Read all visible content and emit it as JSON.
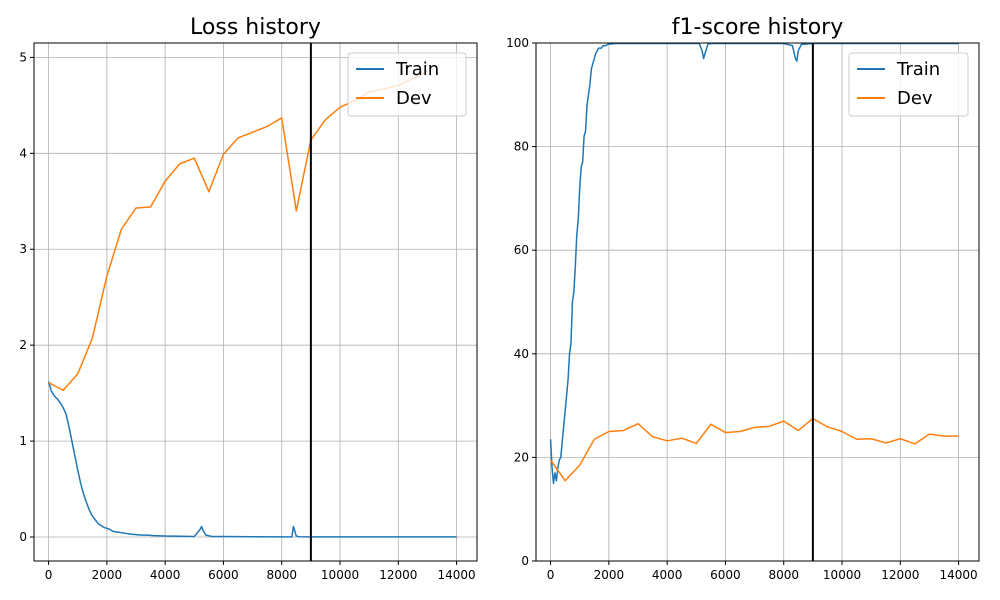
{
  "colors": {
    "train": "#1f77b4",
    "dev": "#ff7f0e",
    "vline": "#000000",
    "grid": "#b0b0b0"
  },
  "chart_data": [
    {
      "type": "line",
      "title": "Loss history",
      "xlabel": "",
      "ylabel": "",
      "xlim": [
        -500,
        14700
      ],
      "ylim": [
        -0.25,
        5.15
      ],
      "xticks": [
        "0",
        "2000",
        "4000",
        "6000",
        "8000",
        "10000",
        "12000",
        "14000"
      ],
      "yticks": [
        "0",
        "1",
        "2",
        "3",
        "4",
        "5"
      ],
      "grid": true,
      "legend_position": "top-right",
      "vline_x": 9000,
      "series": [
        {
          "name": "Train",
          "x": [
            0,
            100,
            200,
            300,
            400,
            500,
            600,
            700,
            800,
            900,
            1000,
            1100,
            1200,
            1300,
            1400,
            1500,
            1600,
            1700,
            1800,
            1900,
            2000,
            2100,
            2200,
            2400,
            2600,
            2800,
            3000,
            3200,
            3400,
            3600,
            4000,
            4500,
            5000,
            5200,
            5250,
            5300,
            5400,
            5600,
            6000,
            7000,
            8000,
            8350,
            8400,
            8450,
            8500,
            8600,
            9000,
            10000,
            11000,
            12000,
            13000,
            14000
          ],
          "y": [
            1.62,
            1.52,
            1.47,
            1.44,
            1.4,
            1.35,
            1.28,
            1.15,
            1.0,
            0.85,
            0.7,
            0.56,
            0.45,
            0.36,
            0.28,
            0.22,
            0.18,
            0.14,
            0.12,
            0.1,
            0.09,
            0.08,
            0.06,
            0.05,
            0.04,
            0.03,
            0.025,
            0.02,
            0.02,
            0.015,
            0.01,
            0.008,
            0.006,
            0.08,
            0.11,
            0.07,
            0.02,
            0.006,
            0.005,
            0.003,
            0.002,
            0.002,
            0.11,
            0.06,
            0.01,
            0.003,
            0.002,
            0.001,
            0.001,
            0.001,
            0.001,
            0.001
          ]
        },
        {
          "name": "Dev",
          "x": [
            0,
            500,
            1000,
            1500,
            2000,
            2500,
            3000,
            3500,
            4000,
            4500,
            5000,
            5500,
            6000,
            6500,
            7000,
            7500,
            8000,
            8500,
            9000,
            9500,
            10000,
            10500,
            11000,
            11500,
            12000,
            12500,
            13000
          ],
          "y": [
            1.61,
            1.53,
            1.7,
            2.07,
            2.72,
            3.21,
            3.43,
            3.44,
            3.71,
            3.89,
            3.95,
            3.6,
            3.99,
            4.16,
            4.22,
            4.28,
            4.37,
            3.4,
            4.14,
            4.35,
            4.48,
            4.55,
            4.64,
            4.67,
            4.71,
            4.78,
            4.86
          ]
        }
      ]
    },
    {
      "type": "line",
      "title": "f1-score history",
      "xlabel": "",
      "ylabel": "",
      "xlim": [
        -500,
        14700
      ],
      "ylim": [
        0,
        100
      ],
      "xticks": [
        "0",
        "2000",
        "4000",
        "6000",
        "8000",
        "10000",
        "12000",
        "14000"
      ],
      "yticks": [
        "0",
        "20",
        "40",
        "60",
        "80",
        "100"
      ],
      "grid": true,
      "legend_position": "top-right",
      "vline_x": 9000,
      "series": [
        {
          "name": "Train",
          "x": [
            0,
            50,
            100,
            150,
            200,
            250,
            300,
            350,
            400,
            450,
            500,
            550,
            600,
            650,
            700,
            750,
            800,
            850,
            900,
            950,
            1000,
            1050,
            1100,
            1150,
            1200,
            1250,
            1300,
            1350,
            1400,
            1450,
            1500,
            1550,
            1600,
            1650,
            1700,
            1750,
            1800,
            1850,
            1900,
            1950,
            2000,
            2100,
            2200,
            2400,
            2600,
            2800,
            3000,
            3500,
            4000,
            4500,
            5000,
            5100,
            5200,
            5250,
            5300,
            5400,
            5500,
            6000,
            7000,
            8000,
            8300,
            8400,
            8450,
            8500,
            8600,
            9000,
            10000,
            11000,
            12000,
            13000,
            14000
          ],
          "y": [
            23.5,
            18,
            15,
            17,
            15.5,
            18,
            19.5,
            20,
            23,
            26,
            29,
            32,
            35,
            40,
            42,
            50,
            52,
            57,
            63,
            66,
            72,
            76,
            77,
            82,
            83,
            88,
            90,
            92,
            95,
            96,
            97,
            98,
            98.5,
            99,
            99,
            99,
            99.5,
            99.5,
            99.5,
            99.7,
            99.8,
            99.8,
            99.9,
            99.9,
            99.9,
            99.9,
            99.9,
            99.9,
            99.9,
            99.9,
            99.9,
            99.9,
            98.5,
            97,
            98,
            99.8,
            99.9,
            99.9,
            99.9,
            99.9,
            99.5,
            97,
            96.5,
            98.5,
            99.7,
            99.9,
            99.9,
            99.9,
            99.9,
            99.9,
            99.9
          ]
        },
        {
          "name": "Dev",
          "x": [
            0,
            500,
            1000,
            1500,
            2000,
            2500,
            3000,
            3500,
            4000,
            4500,
            5000,
            5500,
            6000,
            6500,
            7000,
            7500,
            8000,
            8500,
            9000,
            9500,
            10000,
            10500,
            11000,
            11500,
            12000,
            12500,
            13000,
            13500,
            14000
          ],
          "y": [
            19.5,
            15.5,
            18.5,
            23.5,
            25,
            25.2,
            26.5,
            24,
            23.2,
            23.7,
            22.7,
            26.4,
            24.8,
            25,
            25.8,
            26,
            27,
            25.2,
            27.5,
            25.9,
            25,
            23.5,
            23.6,
            22.8,
            23.6,
            22.6,
            24.5,
            24.1,
            24.1
          ]
        }
      ]
    }
  ]
}
